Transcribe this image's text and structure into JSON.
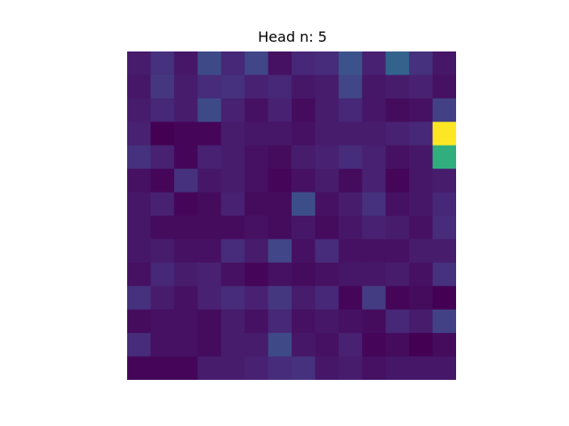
{
  "chart_data": {
    "type": "heatmap",
    "title": "Head n: 5",
    "colormap": "viridis",
    "rows": 14,
    "cols": 14,
    "value_range": [
      0,
      1
    ],
    "axes_visible": false,
    "values": [
      [
        0.1,
        0.18,
        0.08,
        0.28,
        0.14,
        0.26,
        0.06,
        0.14,
        0.16,
        0.32,
        0.12,
        0.4,
        0.18,
        0.08
      ],
      [
        0.08,
        0.2,
        0.1,
        0.16,
        0.18,
        0.12,
        0.14,
        0.08,
        0.1,
        0.26,
        0.08,
        0.1,
        0.12,
        0.06
      ],
      [
        0.1,
        0.14,
        0.1,
        0.28,
        0.12,
        0.06,
        0.12,
        0.04,
        0.1,
        0.14,
        0.08,
        0.04,
        0.06,
        0.24
      ],
      [
        0.12,
        0.0,
        0.02,
        0.02,
        0.1,
        0.08,
        0.08,
        0.06,
        0.1,
        0.1,
        0.1,
        0.12,
        0.14,
        1.0
      ],
      [
        0.18,
        0.12,
        0.02,
        0.12,
        0.1,
        0.06,
        0.04,
        0.1,
        0.12,
        0.16,
        0.12,
        0.06,
        0.08,
        0.72
      ],
      [
        0.06,
        0.02,
        0.18,
        0.08,
        0.1,
        0.06,
        0.02,
        0.06,
        0.1,
        0.04,
        0.12,
        0.02,
        0.08,
        0.1
      ],
      [
        0.08,
        0.12,
        0.02,
        0.04,
        0.12,
        0.04,
        0.04,
        0.3,
        0.06,
        0.1,
        0.18,
        0.06,
        0.08,
        0.14
      ],
      [
        0.08,
        0.04,
        0.04,
        0.04,
        0.04,
        0.06,
        0.04,
        0.08,
        0.04,
        0.08,
        0.12,
        0.1,
        0.06,
        0.16
      ],
      [
        0.08,
        0.1,
        0.06,
        0.06,
        0.16,
        0.1,
        0.26,
        0.06,
        0.16,
        0.06,
        0.06,
        0.06,
        0.1,
        0.1
      ],
      [
        0.06,
        0.14,
        0.1,
        0.12,
        0.06,
        0.02,
        0.06,
        0.04,
        0.06,
        0.08,
        0.08,
        0.1,
        0.06,
        0.18
      ],
      [
        0.18,
        0.1,
        0.06,
        0.12,
        0.16,
        0.12,
        0.2,
        0.1,
        0.14,
        0.02,
        0.22,
        0.02,
        0.04,
        0.0
      ],
      [
        0.04,
        0.06,
        0.06,
        0.04,
        0.1,
        0.06,
        0.14,
        0.06,
        0.08,
        0.06,
        0.04,
        0.14,
        0.1,
        0.24
      ],
      [
        0.16,
        0.06,
        0.06,
        0.04,
        0.1,
        0.1,
        0.28,
        0.08,
        0.06,
        0.12,
        0.02,
        0.04,
        0.0,
        0.04
      ],
      [
        0.02,
        0.02,
        0.02,
        0.1,
        0.1,
        0.12,
        0.16,
        0.18,
        0.08,
        0.1,
        0.06,
        0.08,
        0.08,
        0.08
      ]
    ]
  }
}
